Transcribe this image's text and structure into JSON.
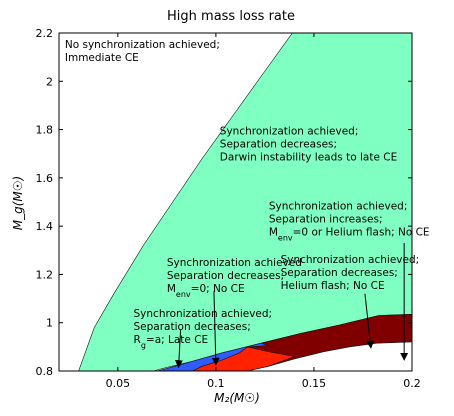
{
  "chart_data": {
    "type": "area",
    "title": "High mass loss rate",
    "xlabel": "M₂(M☉)",
    "ylabel": "M_g(M☉)",
    "xlim": [
      0.02,
      0.2
    ],
    "ylim": [
      0.8,
      2.2
    ],
    "xticks": [
      {
        "value": 0.05,
        "label": "0.05"
      },
      {
        "value": 0.1,
        "label": "0.1"
      },
      {
        "value": 0.15,
        "label": "0.15"
      },
      {
        "value": 0.2,
        "label": "0.2"
      }
    ],
    "yticks": [
      {
        "value": 0.8,
        "label": "0.8"
      },
      {
        "value": 1.0,
        "label": "1"
      },
      {
        "value": 1.2,
        "label": "1.2"
      },
      {
        "value": 1.4,
        "label": "1.4"
      },
      {
        "value": 1.6,
        "label": "1.6"
      },
      {
        "value": 1.8,
        "label": "1.8"
      },
      {
        "value": 2.0,
        "label": "2"
      },
      {
        "value": 2.2,
        "label": "2.2"
      }
    ],
    "grid": false,
    "regions": [
      {
        "id": "white",
        "color": "#ffffff",
        "points": [
          [
            0.02,
            0.8
          ],
          [
            0.02,
            2.2
          ],
          [
            0.139,
            2.2
          ],
          [
            0.123,
            2.02
          ],
          [
            0.108,
            1.85
          ],
          [
            0.093,
            1.68
          ],
          [
            0.078,
            1.5
          ],
          [
            0.063,
            1.32
          ],
          [
            0.048,
            1.12
          ],
          [
            0.038,
            0.98
          ],
          [
            0.03,
            0.8
          ]
        ]
      },
      {
        "id": "green",
        "color": "#7fffc2",
        "points": [
          [
            0.03,
            0.8
          ],
          [
            0.038,
            0.98
          ],
          [
            0.048,
            1.12
          ],
          [
            0.063,
            1.32
          ],
          [
            0.078,
            1.5
          ],
          [
            0.093,
            1.68
          ],
          [
            0.108,
            1.85
          ],
          [
            0.123,
            2.02
          ],
          [
            0.139,
            2.2
          ],
          [
            0.2,
            2.2
          ],
          [
            0.2,
            1.035
          ],
          [
            0.183,
            1.03
          ],
          [
            0.163,
            0.99
          ],
          [
            0.143,
            0.955
          ],
          [
            0.123,
            0.915
          ],
          [
            0.103,
            0.875
          ],
          [
            0.088,
            0.84
          ],
          [
            0.075,
            0.815
          ],
          [
            0.068,
            0.8
          ]
        ]
      },
      {
        "id": "darkred",
        "color": "#800000",
        "points": [
          [
            0.116,
            0.8
          ],
          [
            0.127,
            0.82
          ],
          [
            0.14,
            0.85
          ],
          [
            0.155,
            0.88
          ],
          [
            0.168,
            0.9
          ],
          [
            0.182,
            0.915
          ],
          [
            0.2,
            0.92
          ],
          [
            0.2,
            1.035
          ],
          [
            0.183,
            1.03
          ],
          [
            0.163,
            0.99
          ],
          [
            0.143,
            0.955
          ],
          [
            0.123,
            0.915
          ],
          [
            0.116,
            0.9
          ],
          [
            0.112,
            0.875
          ],
          [
            0.103,
            0.845
          ],
          [
            0.093,
            0.82
          ],
          [
            0.088,
            0.8
          ]
        ]
      },
      {
        "id": "red",
        "color": "#ff2200",
        "points": [
          [
            0.088,
            0.8
          ],
          [
            0.093,
            0.82
          ],
          [
            0.103,
            0.845
          ],
          [
            0.112,
            0.875
          ],
          [
            0.116,
            0.9
          ],
          [
            0.127,
            0.88
          ],
          [
            0.14,
            0.86
          ],
          [
            0.127,
            0.82
          ],
          [
            0.116,
            0.8
          ]
        ]
      },
      {
        "id": "blue",
        "color": "#2f5bff",
        "points": [
          [
            0.07,
            0.8
          ],
          [
            0.077,
            0.815
          ],
          [
            0.088,
            0.84
          ],
          [
            0.103,
            0.875
          ],
          [
            0.123,
            0.915
          ],
          [
            0.127,
            0.905
          ],
          [
            0.116,
            0.9
          ],
          [
            0.112,
            0.875
          ],
          [
            0.103,
            0.845
          ],
          [
            0.093,
            0.82
          ],
          [
            0.088,
            0.8
          ]
        ]
      }
    ],
    "annotations": [
      {
        "id": "immediate-ce",
        "lines": [
          "No synchronization achieved;",
          "Immediate CE"
        ],
        "x": 0.023,
        "y": 2.138
      },
      {
        "id": "darwin",
        "lines": [
          "Synchronization achieved;",
          "Separation decreases;",
          "Darwin instability leads to late CE"
        ],
        "x": 0.102,
        "y": 1.78
      },
      {
        "id": "menv-helium",
        "lines": [
          "Synchronization achieved;",
          "Separation increases;",
          "M_env=0 or Helium flash; No CE"
        ],
        "x": 0.127,
        "y": 1.468
      },
      {
        "id": "helium-flash",
        "lines": [
          "Synchronization achieved;",
          "Separation decreases;",
          "Helium flash; No CE"
        ],
        "x": 0.133,
        "y": 1.248
      },
      {
        "id": "menv0",
        "lines": [
          "Synchronization achieved",
          "Separation decreases;",
          "M_env=0; No CE"
        ],
        "x": 0.075,
        "y": 1.235
      },
      {
        "id": "late-ce",
        "lines": [
          "Synchronization achieved;",
          "Separation decreases;",
          "R_g=a; Late CE"
        ],
        "x": 0.058,
        "y": 1.023
      }
    ],
    "arrows": [
      {
        "id": "arrow-late-ce",
        "from": [
          0.082,
          0.97
        ],
        "to": [
          0.081,
          0.82
        ]
      },
      {
        "id": "arrow-menv0",
        "from": [
          0.099,
          1.13
        ],
        "to": [
          0.1,
          0.83
        ]
      },
      {
        "id": "arrow-helium-flash",
        "from": [
          0.176,
          1.12
        ],
        "to": [
          0.179,
          0.9
        ]
      },
      {
        "id": "arrow-menv-helium",
        "from": [
          0.196,
          1.33
        ],
        "to": [
          0.196,
          0.85
        ]
      }
    ]
  }
}
